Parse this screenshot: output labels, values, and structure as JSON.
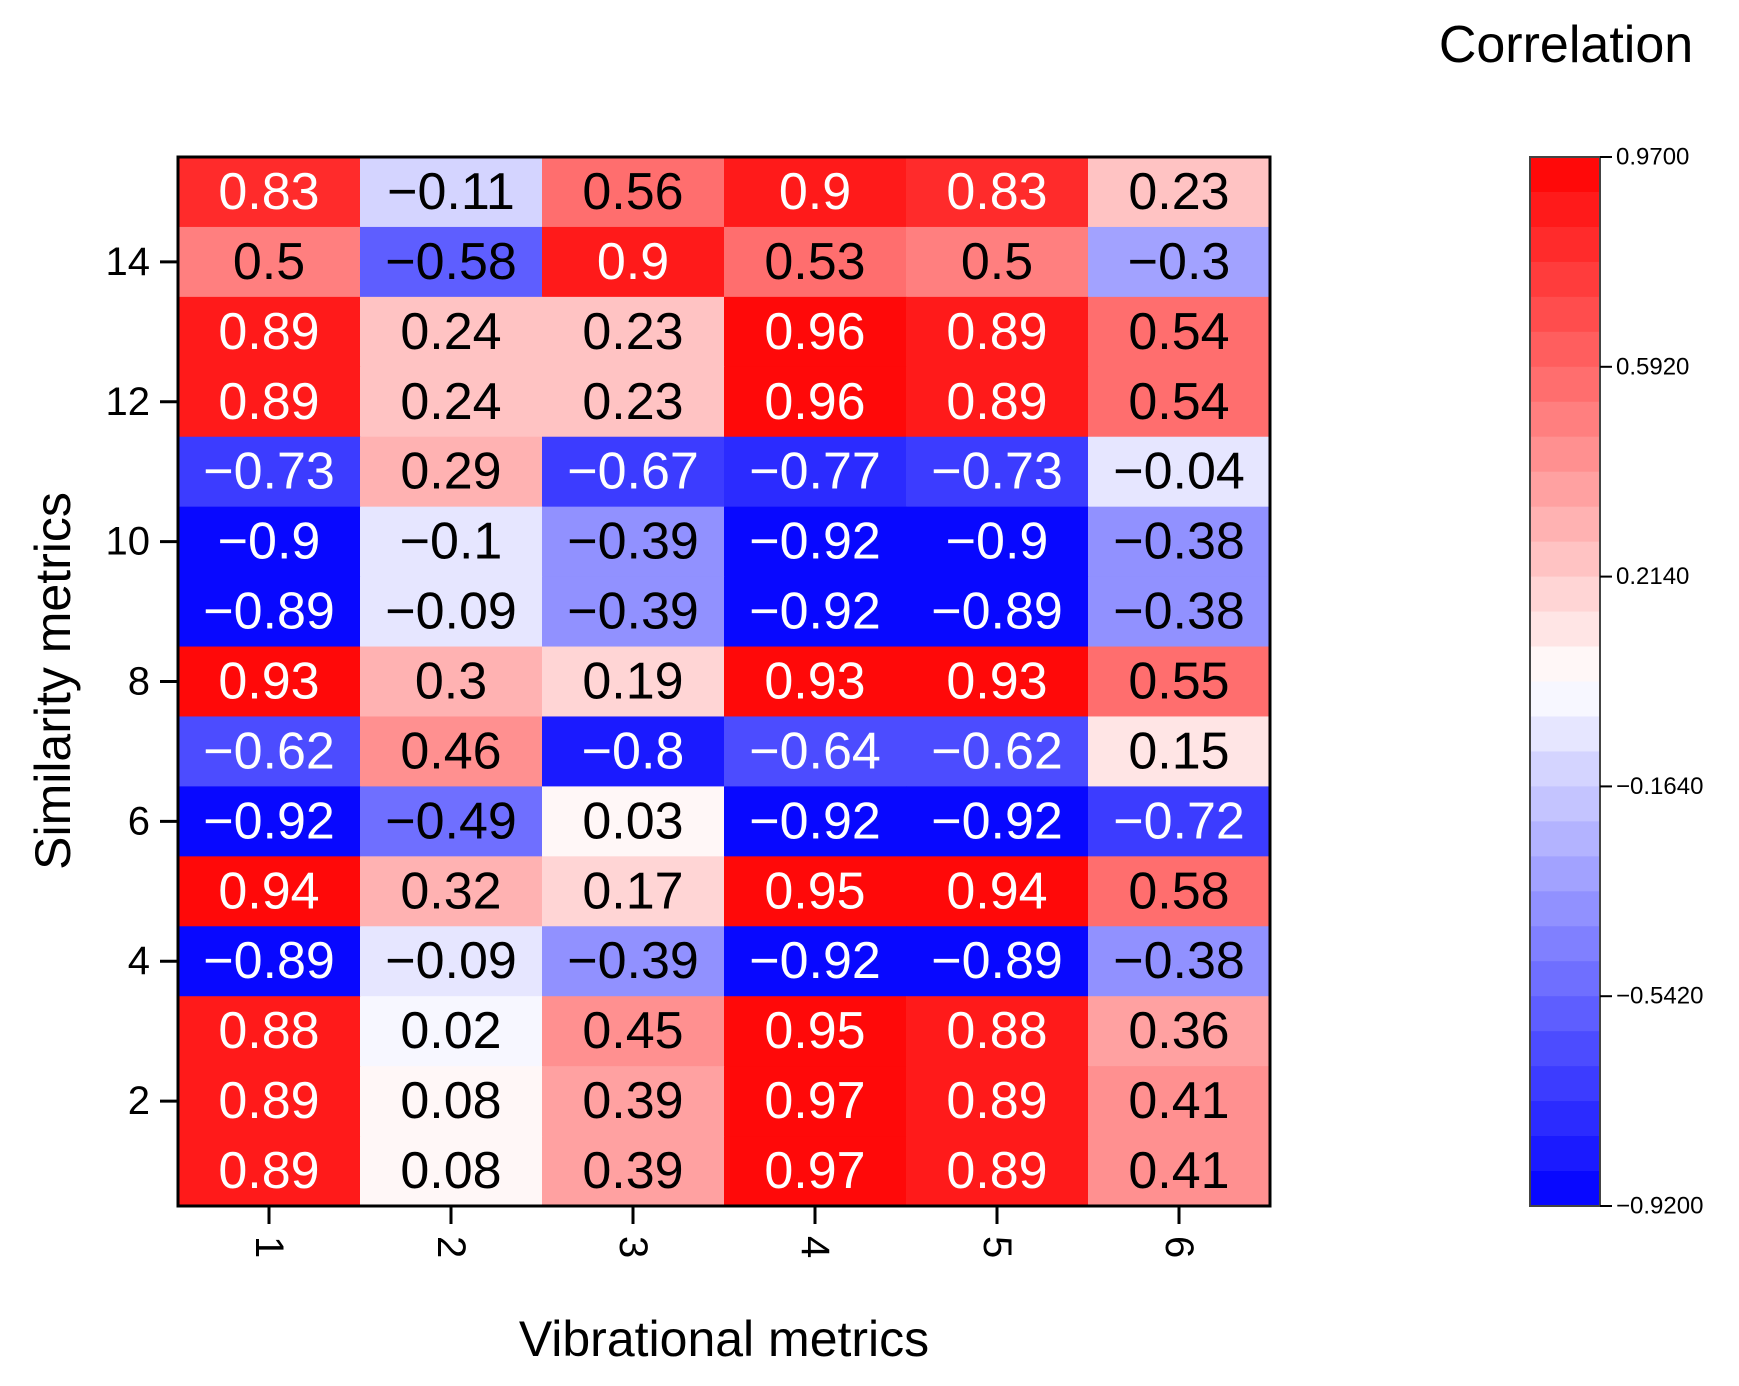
{
  "chart_data": {
    "type": "heatmap",
    "title": "",
    "xlabel": "Vibrational metrics",
    "ylabel": "Similarity metrics",
    "x_categories": [
      "1",
      "2",
      "3",
      "4",
      "5",
      "6"
    ],
    "y_categories": [
      "1",
      "2",
      "3",
      "4",
      "5",
      "6",
      "7",
      "8",
      "9",
      "10",
      "11",
      "12",
      "13",
      "14",
      "15"
    ],
    "x_tick_labels": [
      "1",
      "2",
      "3",
      "4",
      "5",
      "6"
    ],
    "y_tick_labels": [
      "2",
      "4",
      "6",
      "8",
      "10",
      "12",
      "14"
    ],
    "y_tick_values": [
      2,
      4,
      6,
      8,
      10,
      12,
      14
    ],
    "rows_top_to_bottom": [
      [
        "0.83",
        "−0.11",
        "0.56",
        "0.9",
        "0.83",
        "0.23"
      ],
      [
        "0.5",
        "−0.58",
        "0.9",
        "0.53",
        "0.5",
        "−0.3"
      ],
      [
        "0.89",
        "0.24",
        "0.23",
        "0.96",
        "0.89",
        "0.54"
      ],
      [
        "0.89",
        "0.24",
        "0.23",
        "0.96",
        "0.89",
        "0.54"
      ],
      [
        "−0.73",
        "0.29",
        "−0.67",
        "−0.77",
        "−0.73",
        "−0.04"
      ],
      [
        "−0.9",
        "−0.1",
        "−0.39",
        "−0.92",
        "−0.9",
        "−0.38"
      ],
      [
        "−0.89",
        "−0.09",
        "−0.39",
        "−0.92",
        "−0.89",
        "−0.38"
      ],
      [
        "0.93",
        "0.3",
        "0.19",
        "0.93",
        "0.93",
        "0.55"
      ],
      [
        "−0.62",
        "0.46",
        "−0.8",
        "−0.64",
        "−0.62",
        "0.15"
      ],
      [
        "−0.92",
        "−0.49",
        "0.03",
        "−0.92",
        "−0.92",
        "−0.72"
      ],
      [
        "0.94",
        "0.32",
        "0.17",
        "0.95",
        "0.94",
        "0.58"
      ],
      [
        "−0.89",
        "−0.09",
        "−0.39",
        "−0.92",
        "−0.89",
        "−0.38"
      ],
      [
        "0.88",
        "0.02",
        "0.45",
        "0.95",
        "0.88",
        "0.36"
      ],
      [
        "0.89",
        "0.08",
        "0.39",
        "0.97",
        "0.89",
        "0.41"
      ],
      [
        "0.89",
        "0.08",
        "0.39",
        "0.97",
        "0.89",
        "0.41"
      ]
    ],
    "colorbar": {
      "title": "Correlation",
      "min": -0.92,
      "max": 0.97,
      "tick_labels": [
        "0.9700",
        "0.5920",
        "0.2140",
        "−0.1640",
        "−0.5420",
        "−0.9200"
      ],
      "tick_values": [
        0.97,
        0.592,
        0.214,
        -0.164,
        -0.542,
        -0.92
      ],
      "low_color": "#0000ff",
      "mid_color": "#ffffff",
      "high_color": "#ff0000",
      "levels": 30
    }
  }
}
